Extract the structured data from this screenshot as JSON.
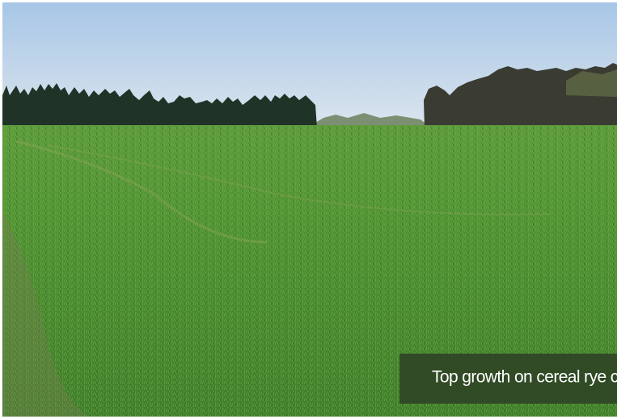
{
  "caption": "Top growth on cereal rye c"
}
